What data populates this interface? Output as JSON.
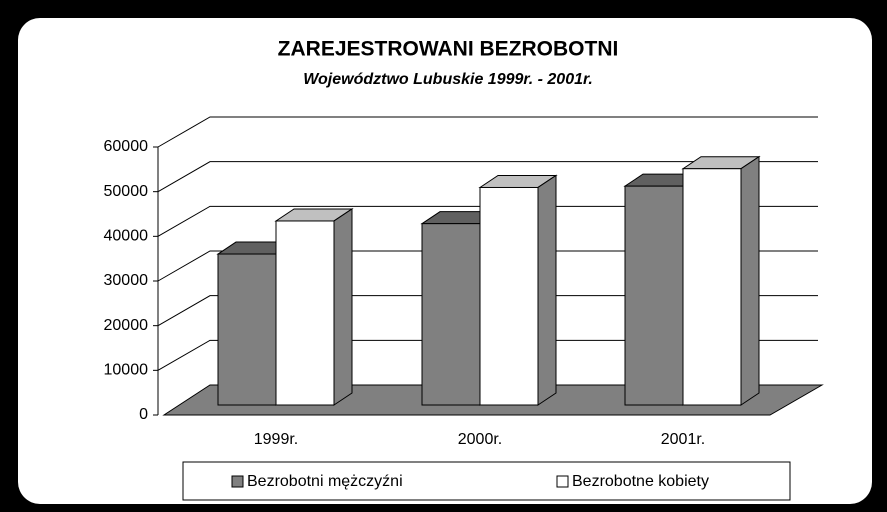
{
  "chart_data": {
    "type": "bar3d",
    "title": "ZAREJESTROWANI BEZROBOTNI",
    "subtitle": "Województwo Lubuskie 1999r. - 2001r.",
    "categories": [
      "1999r.",
      "2000r.",
      "2001r."
    ],
    "series": [
      {
        "name": "Bezrobotni mężczyźni",
        "color": "#808080",
        "values": [
          33800,
          40600,
          49000
        ]
      },
      {
        "name": "Bezrobotne kobiety",
        "color": "#ffffff",
        "values": [
          41200,
          48700,
          52900
        ]
      }
    ],
    "ylim": [
      0,
      60000
    ],
    "yticks": [
      0,
      10000,
      20000,
      30000,
      40000,
      50000,
      60000
    ],
    "grid": true
  }
}
